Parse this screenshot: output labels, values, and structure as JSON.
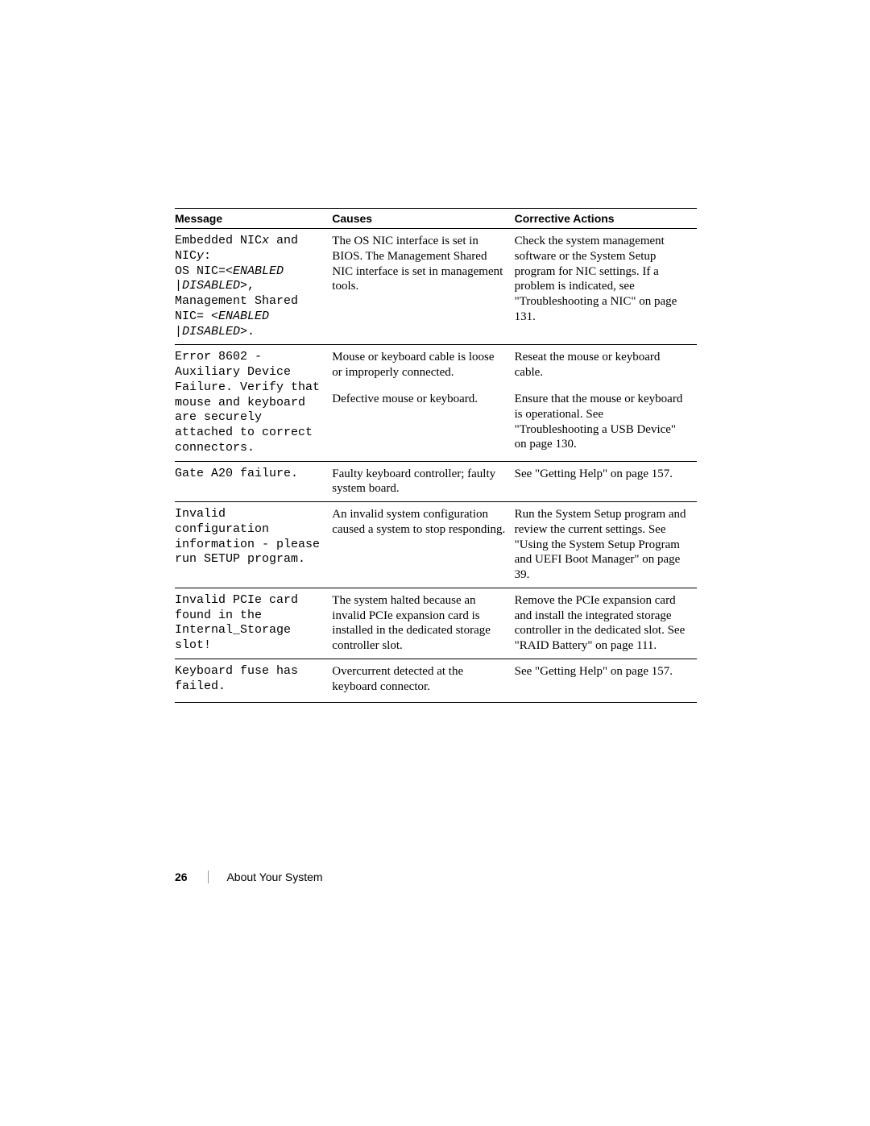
{
  "table": {
    "headers": {
      "message": "Message",
      "causes": "Causes",
      "corrective": "Corrective Actions"
    },
    "rows": [
      {
        "message_html": "Embedded NIC<span class=\"mono-italic\">x</span> and NIC<span class=\"mono-italic\">y</span>:<br>OS NIC=&lt;<span class=\"mono-italic\">ENABLED |DISABLED</span>&gt;, Management Shared NIC= &lt;<span class=\"mono-italic\">ENABLED |DISABLED</span>&gt;.",
        "causes": "The OS NIC interface is set in BIOS. The Management Shared NIC interface is set in management tools.",
        "actions": "Check the system management software or the System Setup program for NIC settings. If a problem is indicated, see \"Troubleshooting a NIC\" on page 131."
      },
      {
        "message_html": "Error 8602 - Auxiliary Device Failure. Verify that mouse and keyboard are securely attached to correct connectors.",
        "causes": "Mouse or keyboard cable is loose or improperly connected.",
        "actions": "Reseat the mouse or keyboard cable.",
        "subrows": [
          {
            "causes": "Defective mouse or keyboard.",
            "actions": "Ensure that the mouse or keyboard is operational. See \"Troubleshooting a USB Device\" on page 130."
          }
        ]
      },
      {
        "message_html": "Gate A20 failure.",
        "causes": "Faulty keyboard controller; faulty system board.",
        "actions": "See \"Getting Help\" on page 157."
      },
      {
        "message_html": "Invalid configuration information - please run SETUP program.",
        "causes": "An invalid system configuration caused a system to stop responding.",
        "actions": "Run the System Setup program and review the current settings. See \"Using the System Setup Program and UEFI Boot Manager\" on page 39."
      },
      {
        "message_html": "Invalid PCIe card found in the Internal_Storage slot!",
        "causes": "The system halted because an invalid PCIe expansion card is installed in the dedicated storage controller slot.",
        "actions": "Remove the PCIe expansion card and install the integrated storage controller in the dedicated slot. See \"RAID Battery\" on page 111."
      },
      {
        "message_html": "Keyboard fuse has failed.",
        "causes": "Overcurrent detected at the keyboard connector.",
        "actions": "See \"Getting Help\" on page 157."
      }
    ]
  },
  "footer": {
    "page_number": "26",
    "section": "About Your System"
  }
}
